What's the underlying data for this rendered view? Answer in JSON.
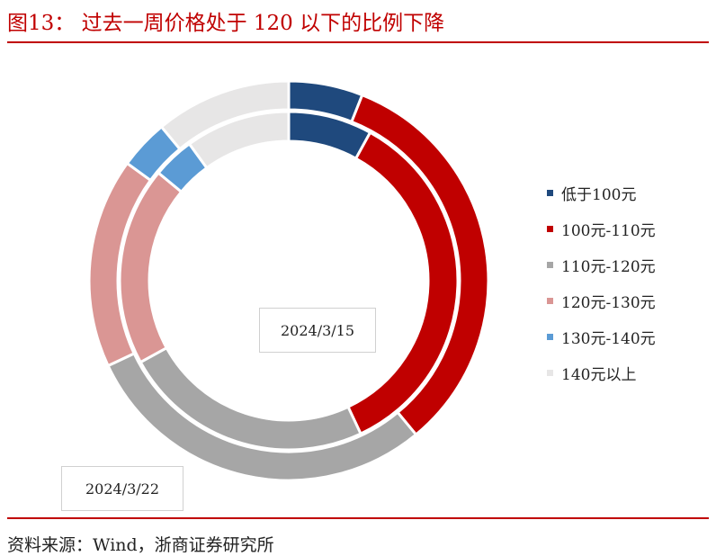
{
  "figure": {
    "title": "图13：  过去一周价格处于 120 以下的比例下降",
    "source": "资料来源：Wind，浙商证券研究所"
  },
  "chart_data": {
    "type": "pie",
    "subtype": "doughnut",
    "categories": [
      "低于100元",
      "100元-110元",
      "110元-120元",
      "120元-130元",
      "130元-140元",
      "140元以上"
    ],
    "colors": [
      "#1f497d",
      "#c00000",
      "#a6a6a6",
      "#da9694",
      "#5b9bd5",
      "#e7e6e6"
    ],
    "series": [
      {
        "name": "2024/3/15",
        "ring": "inner",
        "values": [
          8,
          35,
          24,
          19,
          4,
          10
        ]
      },
      {
        "name": "2024/3/22",
        "ring": "outer",
        "values": [
          6,
          33,
          29,
          17,
          4,
          11
        ]
      }
    ],
    "legend_position": "right"
  }
}
